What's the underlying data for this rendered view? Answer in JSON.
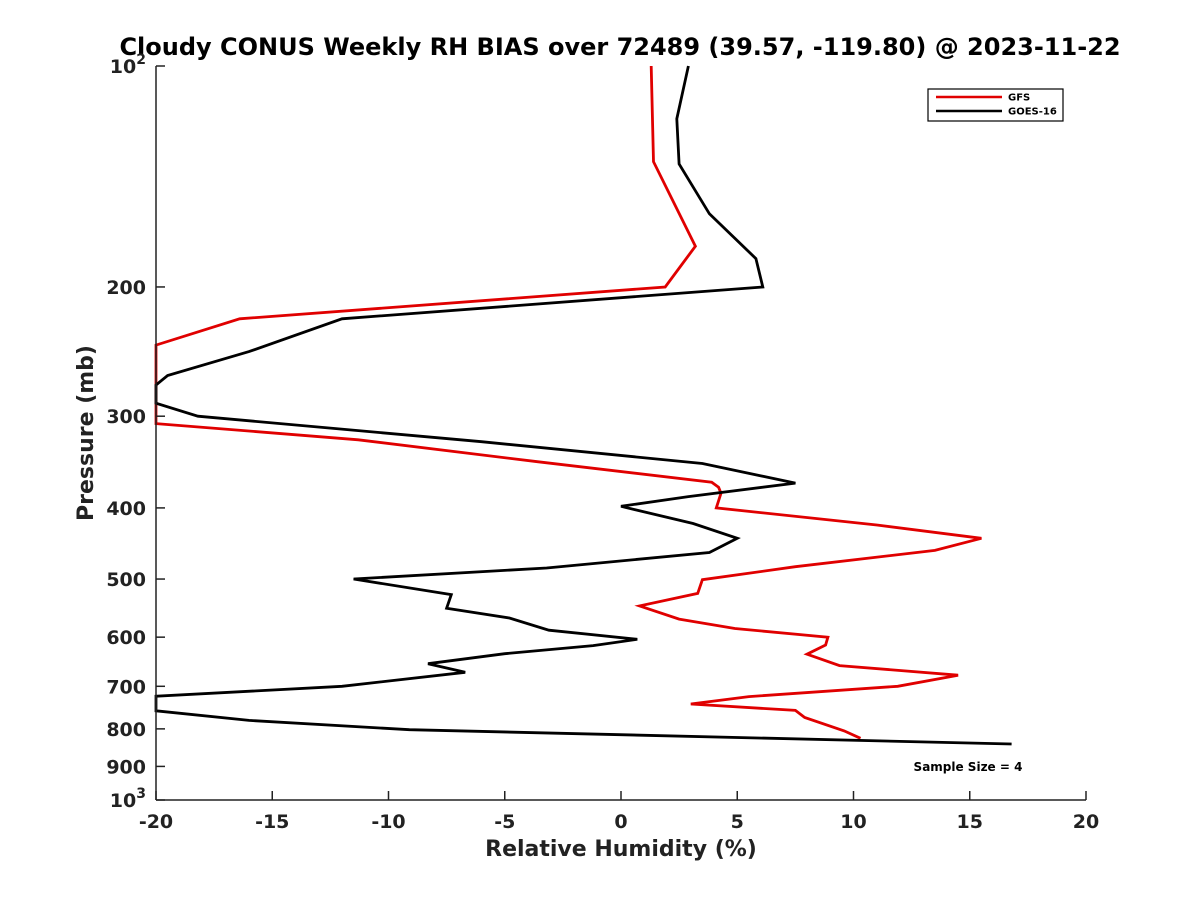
{
  "chart_data": {
    "type": "line",
    "title": "Cloudy CONUS Weekly RH BIAS over 72489 (39.57, -119.80) @ 2023-11-22",
    "xlabel": "Relative Humidity (%)",
    "ylabel": "Pressure (mb)",
    "xlim": [
      -20,
      20
    ],
    "ylim": [
      100,
      1000
    ],
    "yscale": "log",
    "y_reversed": true,
    "grid": false,
    "legend_position": "top-right",
    "x_ticks": [
      {
        "value": -20,
        "label": "-20"
      },
      {
        "value": -15,
        "label": "-15"
      },
      {
        "value": -10,
        "label": "-10"
      },
      {
        "value": -5,
        "label": "-5"
      },
      {
        "value": 0,
        "label": "0"
      },
      {
        "value": 5,
        "label": "5"
      },
      {
        "value": 10,
        "label": "10"
      },
      {
        "value": 15,
        "label": "15"
      },
      {
        "value": 20,
        "label": "20"
      }
    ],
    "y_ticks": [
      {
        "value": 100,
        "label": "10",
        "exp": "2"
      },
      {
        "value": 200,
        "label": "200"
      },
      {
        "value": 300,
        "label": "300"
      },
      {
        "value": 400,
        "label": "400"
      },
      {
        "value": 500,
        "label": "500"
      },
      {
        "value": 600,
        "label": "600"
      },
      {
        "value": 700,
        "label": "700"
      },
      {
        "value": 800,
        "label": "800"
      },
      {
        "value": 900,
        "label": "900"
      },
      {
        "value": 1000,
        "label": "10",
        "exp": "3"
      }
    ],
    "series": [
      {
        "name": "GFS",
        "color": "#e00000",
        "points": [
          [
            1.3,
            100
          ],
          [
            1.4,
            135
          ],
          [
            3.2,
            176
          ],
          [
            1.9,
            200
          ],
          [
            -16.4,
            221
          ],
          [
            -20.0,
            240
          ],
          [
            -20.0,
            307
          ],
          [
            -11.3,
            323
          ],
          [
            -3.6,
            346
          ],
          [
            3.9,
            369
          ],
          [
            4.2,
            375
          ],
          [
            4.3,
            382
          ],
          [
            4.1,
            400
          ],
          [
            11.0,
            422
          ],
          [
            15.5,
            440
          ],
          [
            13.5,
            457
          ],
          [
            7.5,
            481
          ],
          [
            3.5,
            501
          ],
          [
            3.3,
            523
          ],
          [
            0.8,
            544
          ],
          [
            2.5,
            567
          ],
          [
            4.9,
            584
          ],
          [
            8.9,
            600
          ],
          [
            8.8,
            615
          ],
          [
            8.0,
            633
          ],
          [
            9.4,
            656
          ],
          [
            14.5,
            676
          ],
          [
            11.9,
            700
          ],
          [
            5.5,
            723
          ],
          [
            3.0,
            740
          ],
          [
            7.5,
            755
          ],
          [
            7.9,
            772
          ],
          [
            9.6,
            805
          ],
          [
            10.3,
            824
          ]
        ]
      },
      {
        "name": "GOES-16",
        "color": "#000000",
        "points": [
          [
            2.9,
            100
          ],
          [
            2.4,
            118
          ],
          [
            2.5,
            136
          ],
          [
            3.8,
            159
          ],
          [
            5.8,
            183
          ],
          [
            6.1,
            200
          ],
          [
            -12.0,
            221
          ],
          [
            -16.0,
            245
          ],
          [
            -19.5,
            264
          ],
          [
            -20.0,
            272
          ],
          [
            -20.0,
            288
          ],
          [
            -18.2,
            300
          ],
          [
            -6.0,
            325
          ],
          [
            3.5,
            348
          ],
          [
            7.5,
            370
          ],
          [
            2.9,
            386
          ],
          [
            0.0,
            398
          ],
          [
            3.1,
            420
          ],
          [
            5.0,
            440
          ],
          [
            3.8,
            460
          ],
          [
            -3.2,
            483
          ],
          [
            -11.5,
            500
          ],
          [
            -7.3,
            525
          ],
          [
            -7.5,
            548
          ],
          [
            -4.8,
            565
          ],
          [
            -3.1,
            587
          ],
          [
            0.7,
            604
          ],
          [
            -1.2,
            616
          ],
          [
            -5.0,
            632
          ],
          [
            -8.3,
            652
          ],
          [
            -6.7,
            670
          ],
          [
            -12.0,
            700
          ],
          [
            -20.0,
            722
          ],
          [
            -20.0,
            756
          ],
          [
            -16.0,
            779
          ],
          [
            -9.1,
            802
          ],
          [
            16.8,
            839
          ]
        ]
      }
    ],
    "annotations": [
      {
        "text": "Sample Size = 4"
      }
    ]
  }
}
